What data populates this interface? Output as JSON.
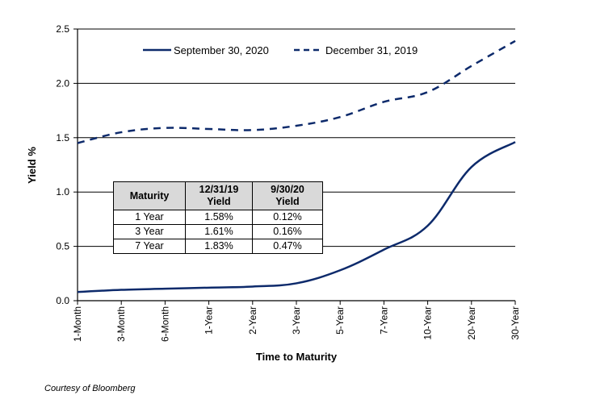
{
  "chart_data": {
    "type": "line",
    "title": "",
    "xlabel": "Time to Maturity",
    "ylabel": "Yield %",
    "ylim": [
      0,
      2.5
    ],
    "yticks": [
      "0.0",
      "0.5",
      "1.0",
      "1.5",
      "2.0",
      "2.5"
    ],
    "grid": "horizontal",
    "legend_position": "top-center",
    "categories": [
      "1-Month",
      "3-Month",
      "6-Month",
      "1-Year",
      "2-Year",
      "3-Year",
      "5-Year",
      "7-Year",
      "10-Year",
      "20-Year",
      "30-Year"
    ],
    "series": [
      {
        "name": "September 30, 2020",
        "style": "solid",
        "color": "#0d2a6b",
        "values": [
          0.08,
          0.1,
          0.11,
          0.12,
          0.13,
          0.16,
          0.28,
          0.47,
          0.69,
          1.23,
          1.46
        ]
      },
      {
        "name": "December 31, 2019",
        "style": "dashed",
        "color": "#0d2a6b",
        "values": [
          1.45,
          1.55,
          1.59,
          1.58,
          1.57,
          1.61,
          1.69,
          1.83,
          1.92,
          2.16,
          2.39
        ]
      }
    ]
  },
  "table": {
    "headers": [
      [
        "Maturity"
      ],
      [
        "12/31/19",
        "Yield"
      ],
      [
        "9/30/20",
        "Yield"
      ]
    ],
    "rows": [
      [
        "1 Year",
        "1.58%",
        "0.12%"
      ],
      [
        "3 Year",
        "1.61%",
        "0.16%"
      ],
      [
        "7 Year",
        "1.83%",
        "0.47%"
      ]
    ]
  },
  "credit": "Courtesy of Bloomberg"
}
